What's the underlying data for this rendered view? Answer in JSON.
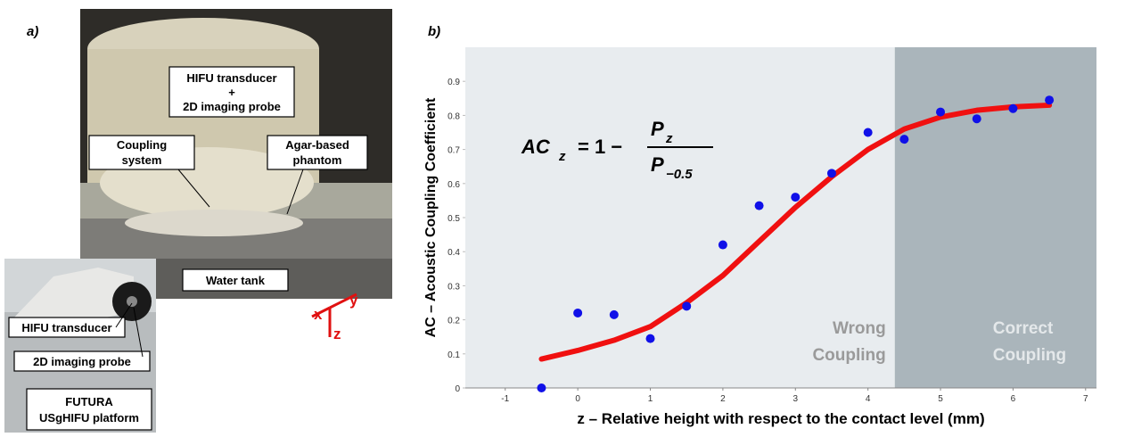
{
  "panel_labels": [
    "a)",
    "b)"
  ],
  "photo": {
    "hifu_box": [
      "HIFU transducer",
      "+",
      "2D imaging probe"
    ],
    "coupling_box": [
      "Coupling",
      "system"
    ],
    "agar_box": [
      "Agar-based",
      "phantom"
    ],
    "water_box": "Water tank",
    "axes": [
      "x",
      "y",
      "z"
    ],
    "inset_hifu": "HIFU transducer",
    "inset_probe": "2D imaging probe",
    "inset_box": [
      "FUTURA",
      "USgHIFU platform"
    ]
  },
  "chart_data": {
    "type": "scatter",
    "xlabel": "z – Relative height with respect to the contact level (mm)",
    "ylabel": "AC – Acoustic Coupling Coefficient",
    "equation": {
      "lhs": "AC",
      "lhs_sub": "z",
      "mid": "= 1 −",
      "num": "P",
      "num_sub": "z",
      "den": "P",
      "den_sub": "−0.5"
    },
    "xlim": [
      -1.55,
      7.15
    ],
    "ylim": [
      0,
      1
    ],
    "xticks": [
      -1,
      0,
      1,
      2,
      3,
      4,
      5,
      6,
      7
    ],
    "yticks": [
      0,
      0.1,
      0.2,
      0.3,
      0.4,
      0.5,
      0.6,
      0.7,
      0.8,
      0.9
    ],
    "regions": [
      {
        "label": [
          "Wrong",
          "Coupling"
        ],
        "color": "#e8ecef",
        "label_color": "#9a9a9a",
        "x": [
          -1.55,
          4.37
        ]
      },
      {
        "label": [
          "Correct",
          "Coupling"
        ],
        "color": "#aab5bb",
        "label_color": "#e4e8ea",
        "x": [
          4.37,
          7.15
        ]
      }
    ],
    "series": [
      {
        "type": "scatter",
        "color": "#1010e8",
        "x": [
          -0.5,
          0,
          0.5,
          1,
          1.5,
          2,
          2.5,
          3,
          3.5,
          4,
          4.5,
          5,
          5.5,
          6,
          6.5
        ],
        "values": [
          0,
          0.22,
          0.215,
          0.145,
          0.24,
          0.42,
          0.535,
          0.56,
          0.63,
          0.75,
          0.73,
          0.81,
          0.79,
          0.82,
          0.845
        ]
      },
      {
        "type": "line",
        "color": "#f01010",
        "x": [
          -0.5,
          0,
          0.5,
          1,
          1.5,
          2,
          2.5,
          3,
          3.5,
          4,
          4.5,
          5,
          5.5,
          6,
          6.5
        ],
        "values": [
          0.085,
          0.11,
          0.14,
          0.18,
          0.25,
          0.33,
          0.43,
          0.53,
          0.62,
          0.7,
          0.76,
          0.795,
          0.815,
          0.825,
          0.83
        ]
      }
    ]
  }
}
